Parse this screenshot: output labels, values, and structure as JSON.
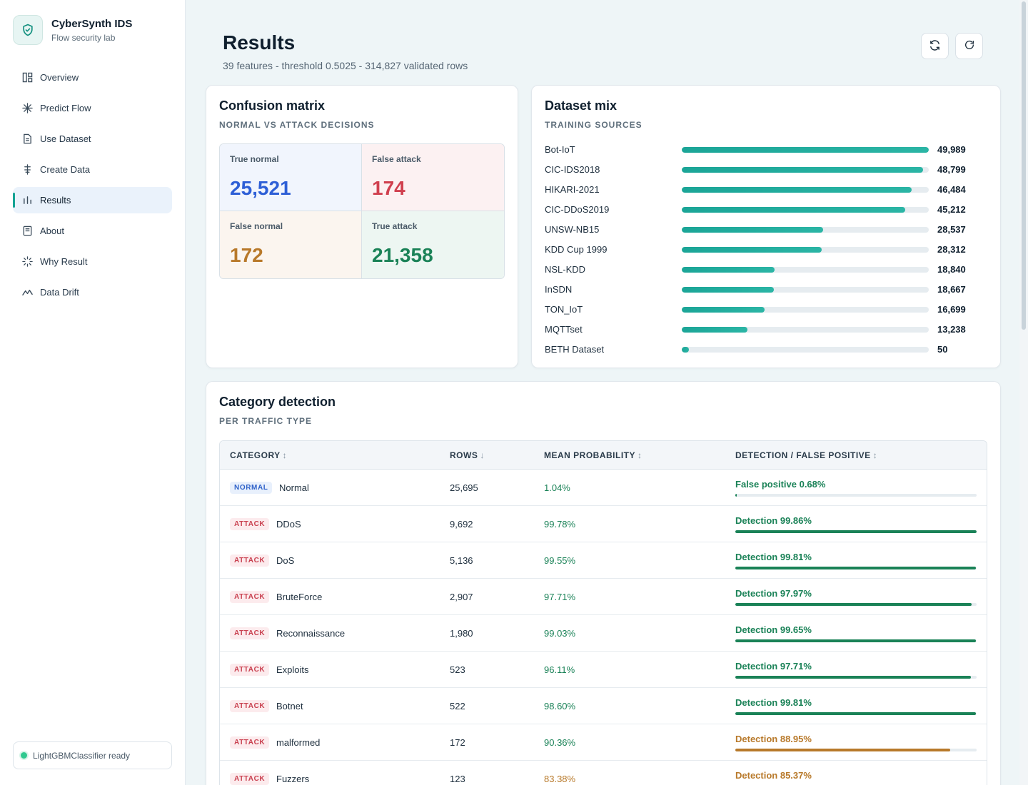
{
  "brand": {
    "title": "CyberSynth IDS",
    "subtitle": "Flow security lab"
  },
  "nav": [
    {
      "label": "Overview",
      "icon": "layout-icon",
      "active": false
    },
    {
      "label": "Predict Flow",
      "icon": "sparkle-icon",
      "active": false
    },
    {
      "label": "Use Dataset",
      "icon": "file-icon",
      "active": false
    },
    {
      "label": "Create Data",
      "icon": "sliders-icon",
      "active": false
    },
    {
      "label": "Results",
      "icon": "bar-chart-icon",
      "active": true
    },
    {
      "label": "About",
      "icon": "book-icon",
      "active": false
    },
    {
      "label": "Why Result",
      "icon": "loader-icon",
      "active": false
    },
    {
      "label": "Data Drift",
      "icon": "trend-icon",
      "active": false
    }
  ],
  "status": {
    "text": "LightGBMClassifier ready",
    "color": "#2fc98f"
  },
  "header": {
    "title": "Results",
    "subtitle": "39 features - threshold 0.5025 - 314,827 validated rows"
  },
  "confusion": {
    "title": "Confusion matrix",
    "subtitle": "NORMAL VS ATTACK DECISIONS",
    "true_normal": {
      "label": "True normal",
      "value": "25,521",
      "color": "#2e5fd6"
    },
    "false_attack": {
      "label": "False attack",
      "value": "174",
      "color": "#d0404f"
    },
    "false_normal": {
      "label": "False normal",
      "value": "172",
      "color": "#b8792a"
    },
    "true_attack": {
      "label": "True attack",
      "value": "21,358",
      "color": "#1a8257"
    }
  },
  "dataset_mix": {
    "title": "Dataset mix",
    "subtitle": "TRAINING SOURCES",
    "max": 49989,
    "items": [
      {
        "name": "Bot-IoT",
        "count": 49989,
        "label": "49,989"
      },
      {
        "name": "CIC-IDS2018",
        "count": 48799,
        "label": "48,799"
      },
      {
        "name": "HIKARI-2021",
        "count": 46484,
        "label": "46,484"
      },
      {
        "name": "CIC-DDoS2019",
        "count": 45212,
        "label": "45,212"
      },
      {
        "name": "UNSW-NB15",
        "count": 28537,
        "label": "28,537"
      },
      {
        "name": "KDD Cup 1999",
        "count": 28312,
        "label": "28,312"
      },
      {
        "name": "NSL-KDD",
        "count": 18840,
        "label": "18,840"
      },
      {
        "name": "InSDN",
        "count": 18667,
        "label": "18,667"
      },
      {
        "name": "TON_IoT",
        "count": 16699,
        "label": "16,699"
      },
      {
        "name": "MQTTset",
        "count": 13238,
        "label": "13,238"
      },
      {
        "name": "BETH Dataset",
        "count": 50,
        "label": "50"
      }
    ]
  },
  "category": {
    "title": "Category detection",
    "subtitle": "PER TRAFFIC TYPE",
    "columns": {
      "category": "CATEGORY",
      "category_sort": "↕",
      "rows": "ROWS",
      "rows_sort": "↓",
      "mean": "MEAN PROBABILITY",
      "mean_sort": "↕",
      "detection": "DETECTION / FALSE POSITIVE",
      "detection_sort": "↕"
    },
    "rows": [
      {
        "badge": "NORMAL",
        "type": "normal",
        "name": "Normal",
        "rows": "25,695",
        "mean": "1.04%",
        "mean_color": "#1a8257",
        "metric": "False positive 0.68%",
        "percent": 0.68,
        "color": "#1a8257"
      },
      {
        "badge": "ATTACK",
        "type": "attack",
        "name": "DDoS",
        "rows": "9,692",
        "mean": "99.78%",
        "mean_color": "#1a8257",
        "metric": "Detection 99.86%",
        "percent": 99.86,
        "color": "#1a8257"
      },
      {
        "badge": "ATTACK",
        "type": "attack",
        "name": "DoS",
        "rows": "5,136",
        "mean": "99.55%",
        "mean_color": "#1a8257",
        "metric": "Detection 99.81%",
        "percent": 99.81,
        "color": "#1a8257"
      },
      {
        "badge": "ATTACK",
        "type": "attack",
        "name": "BruteForce",
        "rows": "2,907",
        "mean": "97.71%",
        "mean_color": "#1a8257",
        "metric": "Detection 97.97%",
        "percent": 97.97,
        "color": "#1a8257"
      },
      {
        "badge": "ATTACK",
        "type": "attack",
        "name": "Reconnaissance",
        "rows": "1,980",
        "mean": "99.03%",
        "mean_color": "#1a8257",
        "metric": "Detection 99.65%",
        "percent": 99.65,
        "color": "#1a8257"
      },
      {
        "badge": "ATTACK",
        "type": "attack",
        "name": "Exploits",
        "rows": "523",
        "mean": "96.11%",
        "mean_color": "#1a8257",
        "metric": "Detection 97.71%",
        "percent": 97.71,
        "color": "#1a8257"
      },
      {
        "badge": "ATTACK",
        "type": "attack",
        "name": "Botnet",
        "rows": "522",
        "mean": "98.60%",
        "mean_color": "#1a8257",
        "metric": "Detection 99.81%",
        "percent": 99.81,
        "color": "#1a8257"
      },
      {
        "badge": "ATTACK",
        "type": "attack",
        "name": "malformed",
        "rows": "172",
        "mean": "90.36%",
        "mean_color": "#1a8257",
        "metric": "Detection 88.95%",
        "percent": 88.95,
        "color": "#b8792a"
      },
      {
        "badge": "ATTACK",
        "type": "attack",
        "name": "Fuzzers",
        "rows": "123",
        "mean": "83.38%",
        "mean_color": "#b8792a",
        "metric": "Detection 85.37%",
        "percent": 85.37,
        "color": "#b8792a"
      }
    ]
  },
  "actions": {
    "sync_icon": "sync-icon",
    "refresh_icon": "refresh-icon"
  }
}
